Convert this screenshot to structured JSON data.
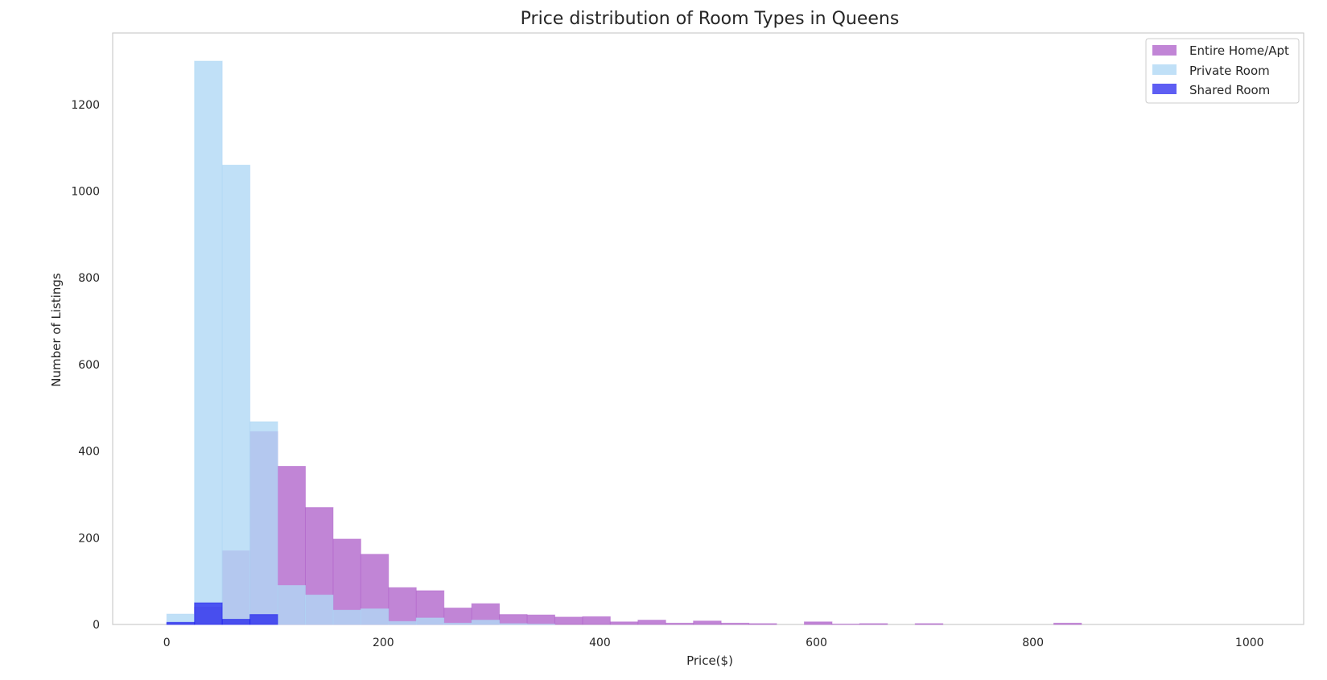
{
  "chart_data": {
    "type": "bar",
    "title": "Price distribution of Room Types in Queens",
    "xlabel": "Price($)",
    "ylabel": "Number of Listings",
    "xlim": [
      -50,
      1050
    ],
    "ylim": [
      0,
      1365
    ],
    "xticks": [
      0,
      200,
      400,
      600,
      800,
      1000
    ],
    "yticks": [
      0,
      200,
      400,
      600,
      800,
      1000,
      1200
    ],
    "grid": false,
    "legend_position": "top-right",
    "bin_width": 25.6,
    "bin_start": 0,
    "series": [
      {
        "name": "Entire Home/Apt",
        "color": "#b266cc",
        "opacity": 0.8,
        "values": [
          3,
          40,
          170,
          445,
          365,
          270,
          197,
          162,
          85,
          78,
          38,
          48,
          23,
          22,
          17,
          18,
          6,
          10,
          3,
          8,
          3,
          2,
          0,
          6,
          1,
          2,
          0,
          2,
          0,
          0,
          0,
          0,
          3,
          0,
          0,
          0,
          0,
          0,
          0
        ]
      },
      {
        "name": "Private Room",
        "color": "#b0d8f5",
        "opacity": 0.8,
        "values": [
          24,
          1300,
          1060,
          468,
          90,
          68,
          33,
          36,
          7,
          15,
          3,
          10,
          2,
          1,
          0,
          0,
          0,
          0,
          0,
          0,
          0,
          0,
          0,
          0,
          0,
          0,
          0,
          0,
          0,
          0,
          0,
          0,
          0,
          0,
          0,
          0,
          0,
          0,
          0
        ]
      },
      {
        "name": "Shared Room",
        "color": "#1a1aee",
        "opacity": 0.7,
        "values": [
          5,
          50,
          12,
          23,
          0,
          0,
          0,
          0,
          0,
          0,
          0,
          0,
          0,
          0,
          0,
          0,
          0,
          0,
          0,
          0,
          0,
          0,
          0,
          0,
          0,
          0,
          0,
          0,
          0,
          0,
          0,
          0,
          0,
          0,
          0,
          0,
          0,
          0,
          0
        ]
      }
    ]
  }
}
